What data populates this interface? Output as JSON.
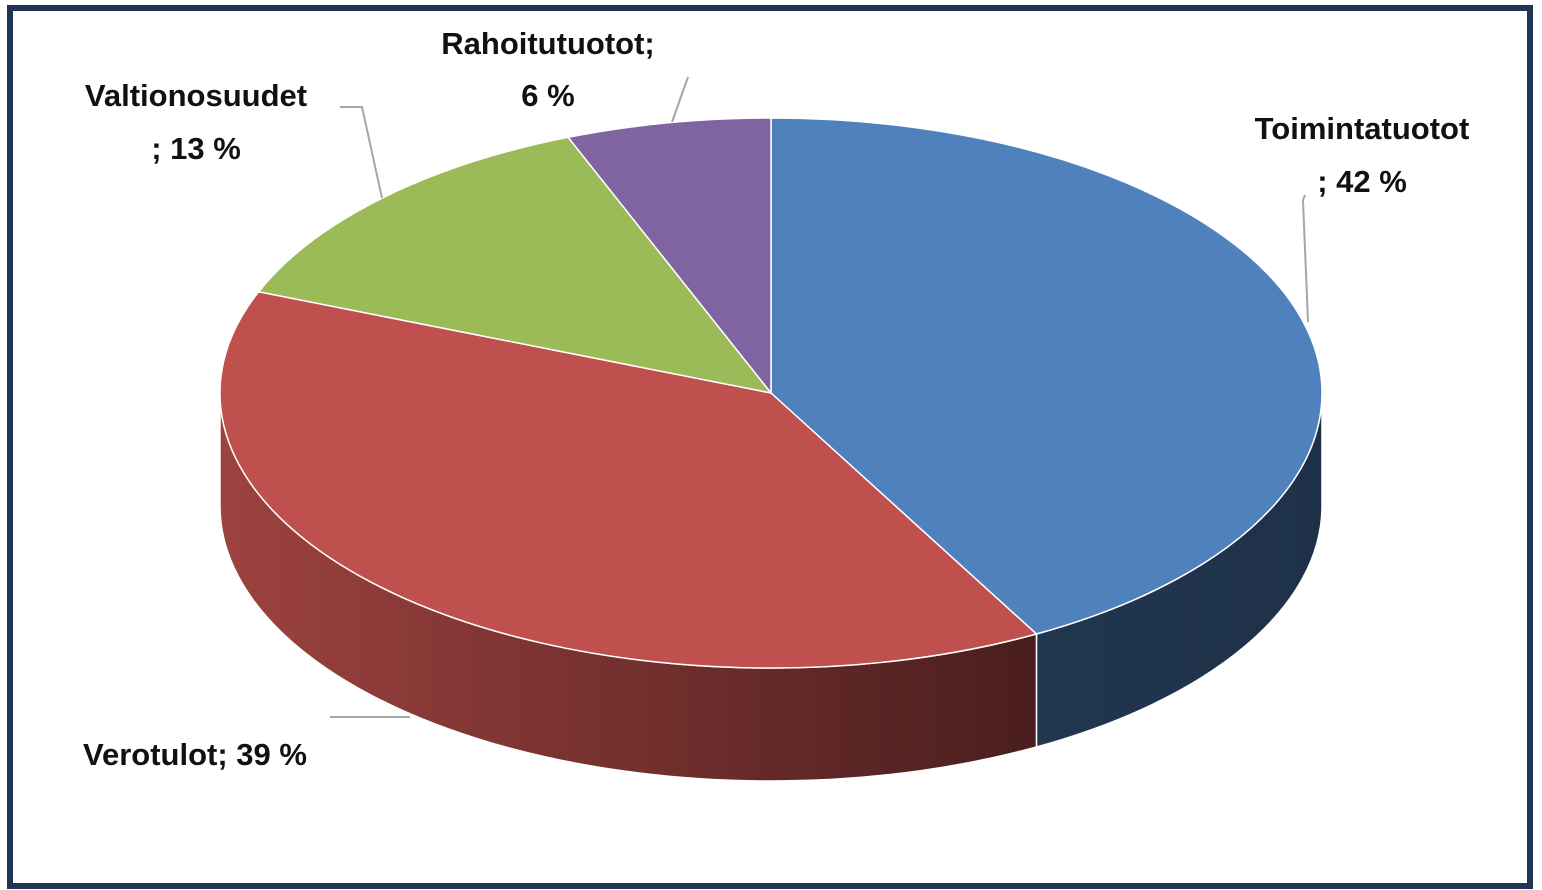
{
  "chart_data": {
    "type": "pie3d",
    "categories": [
      "Toimintatuotot",
      "Verotulot",
      "Valtionosuudet",
      "Rahoitutuotot;"
    ],
    "values": [
      42,
      39,
      13,
      6
    ],
    "value_labels": [
      "; 42 %",
      "; 39 %",
      "; 13 %",
      "6 %"
    ],
    "colors": [
      "#4f81bd",
      "#c0504d",
      "#9bbb59",
      "#8064a2"
    ]
  }
}
